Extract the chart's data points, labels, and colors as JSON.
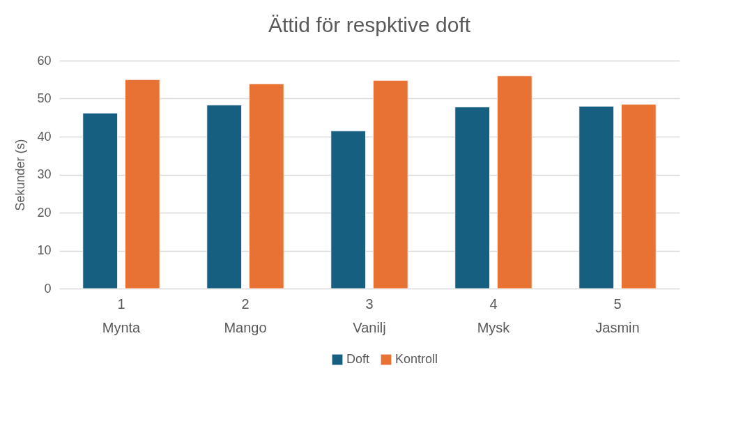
{
  "chart_data": {
    "type": "bar",
    "title": "Ättid för respktive doft",
    "ylabel": "Sekunder (s)",
    "categories": [
      "1\nMynta",
      "2\nMango",
      "3\nVanilj",
      "4\nMysk",
      "5\nJasmin"
    ],
    "series": [
      {
        "name": "Doft",
        "color": "#175f80",
        "values": [
          46.2,
          48.3,
          41.5,
          47.8,
          48.0
        ]
      },
      {
        "name": "Kontroll",
        "color": "#e87233",
        "values": [
          55.0,
          53.9,
          54.8,
          56.0,
          48.5
        ]
      }
    ],
    "ylim": [
      0,
      60
    ],
    "yticks": [
      0,
      10,
      20,
      30,
      40,
      50,
      60
    ],
    "grid": "y",
    "legend": "bottom"
  }
}
